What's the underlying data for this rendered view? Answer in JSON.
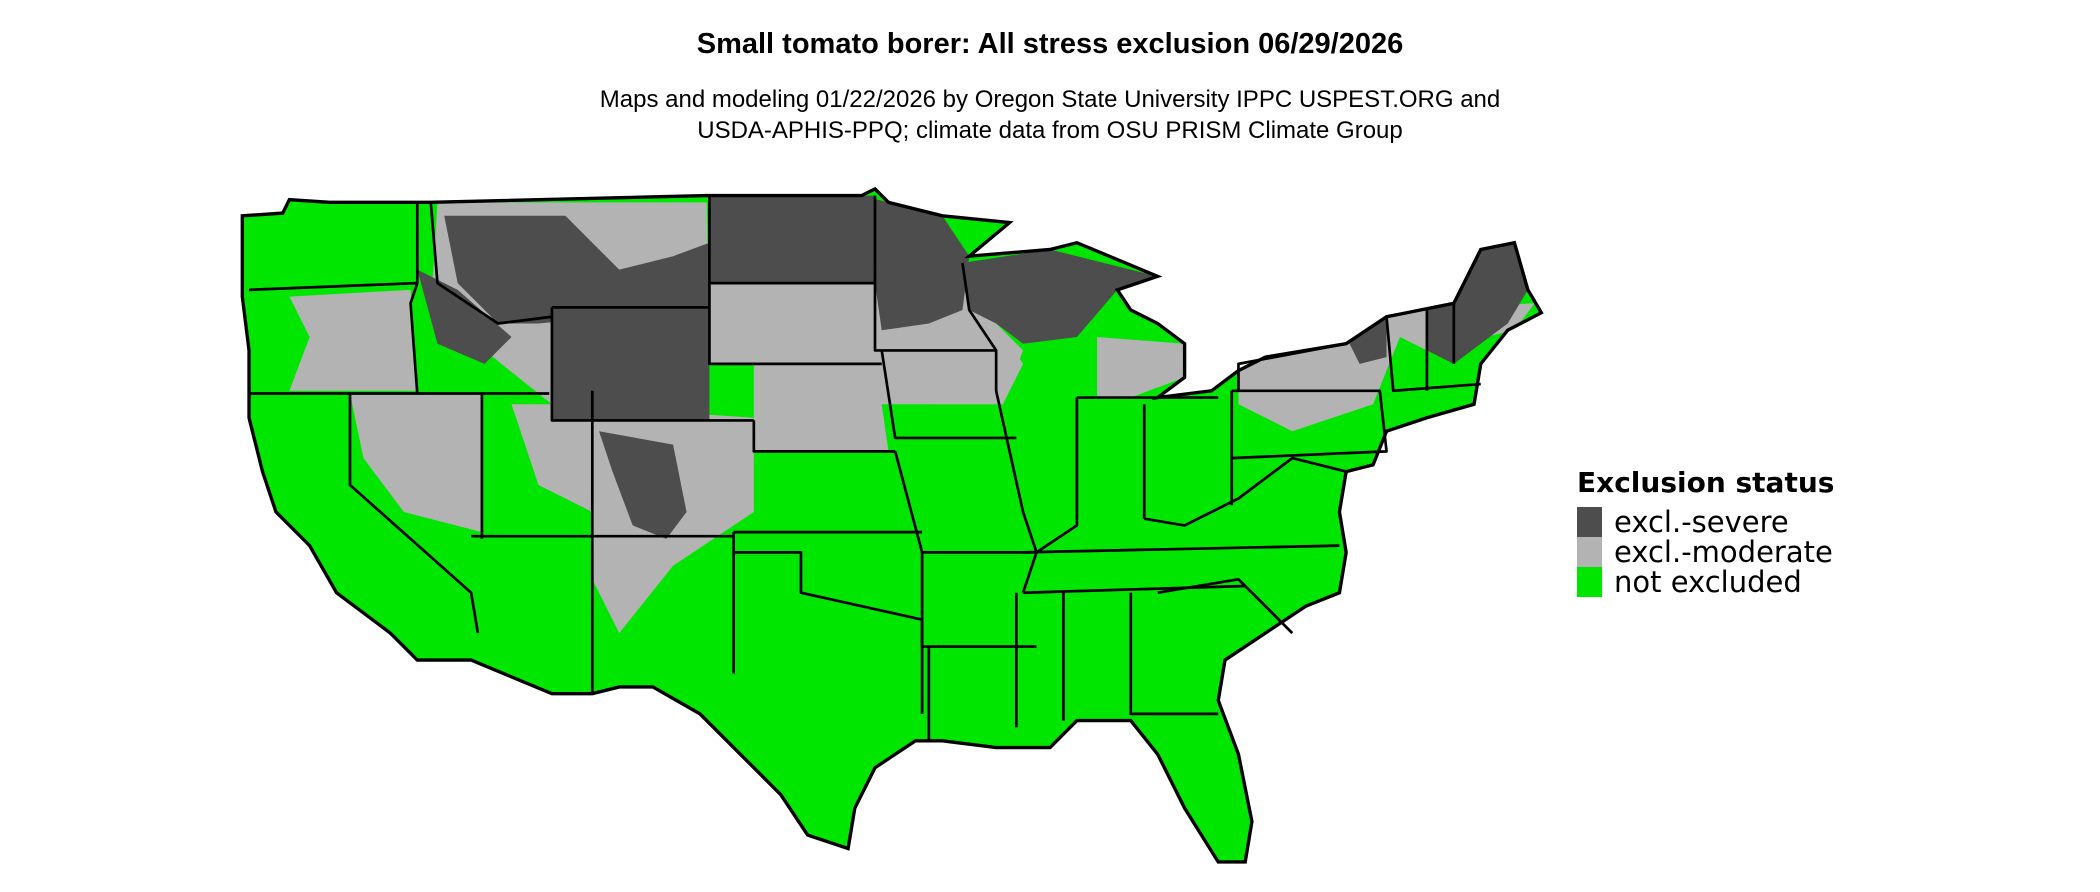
{
  "title": "Small tomato borer: All stress exclusion 06/29/2026",
  "subtitle_line1": "Maps and modeling 01/22/2026 by Oregon State University IPPC USPEST.ORG and",
  "subtitle_line2": "USDA-APHIS-PPQ; climate data from OSU PRISM Climate Group",
  "legend": {
    "title": "Exclusion status",
    "items": [
      {
        "label": "excl.-severe",
        "color": "#4d4d4d"
      },
      {
        "label": "excl.-moderate",
        "color": "#b3b3b3"
      },
      {
        "label": "not excluded",
        "color": "#00e600"
      }
    ]
  },
  "map": {
    "region": "Contiguous United States",
    "border_color": "#000000"
  }
}
